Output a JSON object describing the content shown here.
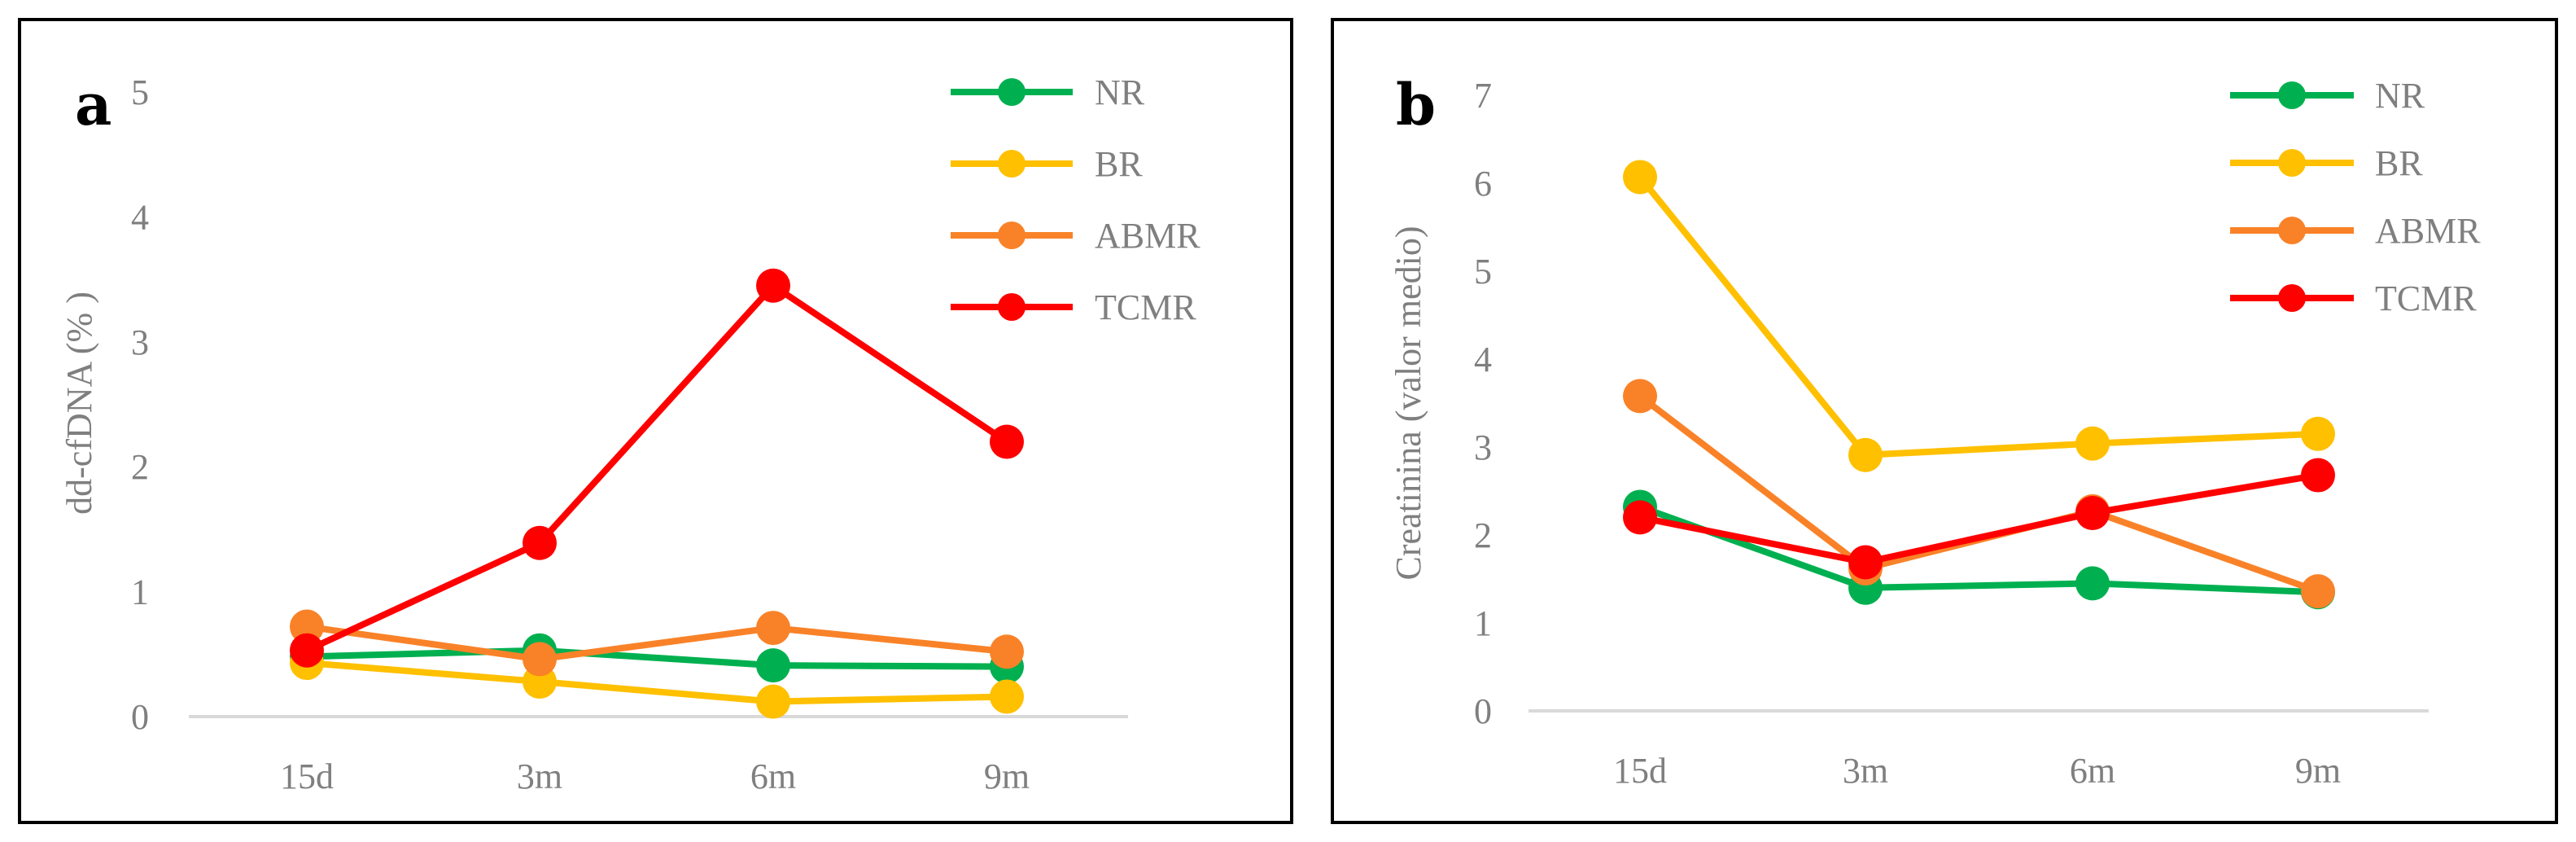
{
  "figure": {
    "panels": [
      "a",
      "b"
    ]
  },
  "chart_data": [
    {
      "panel": "a",
      "type": "line",
      "title": "",
      "xlabel": "",
      "ylabel": "dd-cfDNA (% )",
      "categories": [
        "15d",
        "3m",
        "6m",
        "9m"
      ],
      "ylim": [
        0,
        5
      ],
      "yticks": [
        0,
        1,
        2,
        3,
        4,
        5
      ],
      "grid": false,
      "legend": "top-right",
      "series": [
        {
          "name": "NR",
          "color": "#00b050",
          "values": [
            0.48,
            0.53,
            0.41,
            0.4
          ]
        },
        {
          "name": "BR",
          "color": "#ffc000",
          "values": [
            0.43,
            0.28,
            0.12,
            0.16
          ]
        },
        {
          "name": "ABMR",
          "color": "#f98228",
          "values": [
            0.72,
            0.46,
            0.71,
            0.52
          ]
        },
        {
          "name": "TCMR",
          "color": "#ff0000",
          "values": [
            0.53,
            1.39,
            3.45,
            2.2
          ]
        }
      ]
    },
    {
      "panel": "b",
      "type": "line",
      "title": "",
      "xlabel": "",
      "ylabel": "Creatinina (valor medio)",
      "categories": [
        "15d",
        "3m",
        "6m",
        "9m"
      ],
      "ylim": [
        0,
        7
      ],
      "yticks": [
        0,
        1,
        2,
        3,
        4,
        5,
        6,
        7
      ],
      "grid": false,
      "legend": "top-right",
      "series": [
        {
          "name": "NR",
          "color": "#00b050",
          "values": [
            2.32,
            1.4,
            1.45,
            1.35
          ]
        },
        {
          "name": "BR",
          "color": "#ffc000",
          "values": [
            6.07,
            2.91,
            3.04,
            3.15
          ]
        },
        {
          "name": "ABMR",
          "color": "#f98228",
          "values": [
            3.58,
            1.62,
            2.27,
            1.36
          ]
        },
        {
          "name": "TCMR",
          "color": "#ff0000",
          "values": [
            2.2,
            1.69,
            2.25,
            2.68
          ]
        }
      ]
    }
  ]
}
